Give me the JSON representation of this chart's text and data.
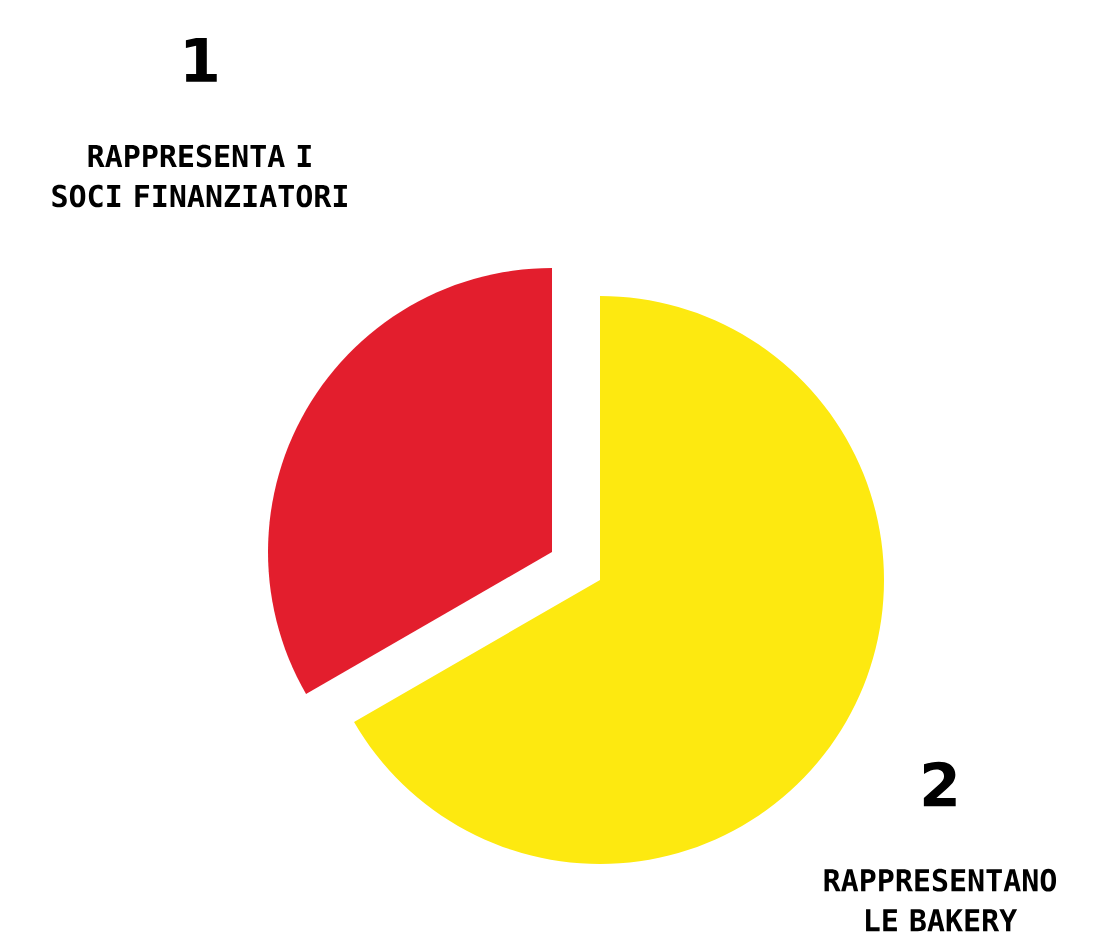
{
  "chart_data": {
    "type": "pie",
    "categories": [
      "RAPPRESENTA I SOCI FINANZIATORI",
      "RAPPRESENTANO LE BAKERY"
    ],
    "values": [
      1,
      2
    ],
    "colors": [
      "#e31e2d",
      "#fde910"
    ],
    "data_labels": true
  }
}
